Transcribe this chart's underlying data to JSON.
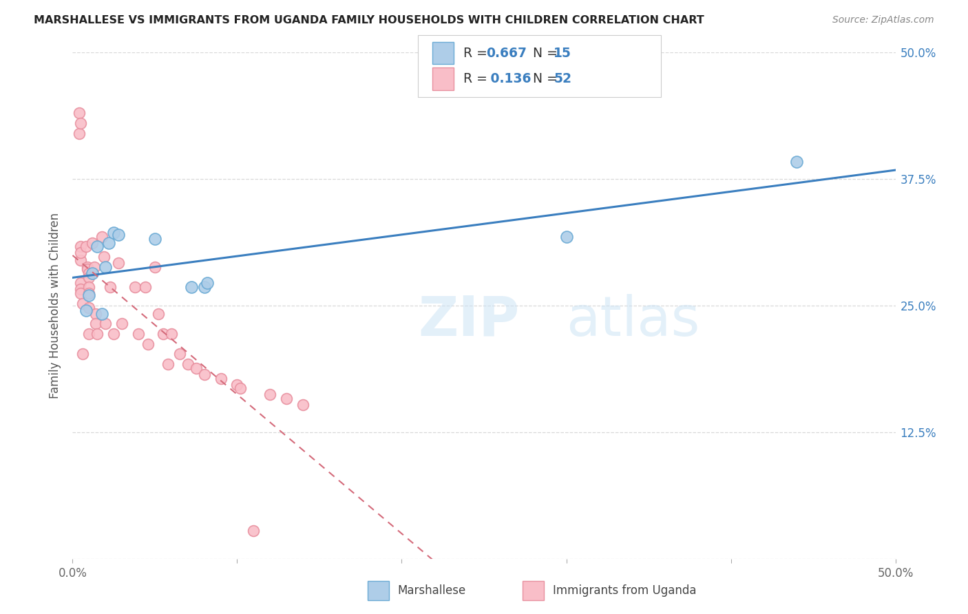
{
  "title": "MARSHALLESE VS IMMIGRANTS FROM UGANDA FAMILY HOUSEHOLDS WITH CHILDREN CORRELATION CHART",
  "source": "Source: ZipAtlas.com",
  "ylabel": "Family Households with Children",
  "x_min": 0.0,
  "x_max": 0.5,
  "y_min": 0.0,
  "y_max": 0.5,
  "y_tick_labels_right": [
    "50.0%",
    "37.5%",
    "25.0%",
    "12.5%",
    ""
  ],
  "y_tick_positions_right": [
    0.5,
    0.375,
    0.25,
    0.125,
    0.0
  ],
  "watermark_zip": "ZIP",
  "watermark_atlas": "atlas",
  "blue_dot_fill": "#aecde8",
  "blue_dot_edge": "#6aaad4",
  "blue_line_color": "#3a7ebf",
  "pink_dot_fill": "#f9bec8",
  "pink_dot_edge": "#e8909f",
  "pink_line_color": "#d46a7a",
  "legend_R1": "0.667",
  "legend_N1": "15",
  "legend_R2": "0.136",
  "legend_N2": "52",
  "grid_color": "#d8d8d8",
  "marshallese_x": [
    0.008,
    0.01,
    0.012,
    0.015,
    0.018,
    0.02,
    0.022,
    0.025,
    0.028,
    0.05,
    0.072,
    0.08,
    0.082,
    0.3,
    0.44
  ],
  "marshallese_y": [
    0.245,
    0.26,
    0.282,
    0.308,
    0.242,
    0.288,
    0.312,
    0.322,
    0.32,
    0.316,
    0.268,
    0.268,
    0.272,
    0.318,
    0.392
  ],
  "uganda_x": [
    0.004,
    0.004,
    0.005,
    0.005,
    0.005,
    0.005,
    0.005,
    0.005,
    0.005,
    0.006,
    0.006,
    0.008,
    0.009,
    0.009,
    0.01,
    0.01,
    0.01,
    0.01,
    0.01,
    0.01,
    0.012,
    0.013,
    0.014,
    0.014,
    0.015,
    0.018,
    0.019,
    0.02,
    0.023,
    0.025,
    0.028,
    0.03,
    0.038,
    0.04,
    0.044,
    0.046,
    0.05,
    0.052,
    0.055,
    0.058,
    0.06,
    0.065,
    0.07,
    0.075,
    0.08,
    0.09,
    0.1,
    0.102,
    0.11,
    0.12,
    0.13,
    0.14
  ],
  "uganda_y": [
    0.42,
    0.44,
    0.43,
    0.295,
    0.308,
    0.302,
    0.272,
    0.266,
    0.262,
    0.252,
    0.202,
    0.308,
    0.288,
    0.286,
    0.282,
    0.278,
    0.268,
    0.262,
    0.248,
    0.222,
    0.312,
    0.288,
    0.242,
    0.232,
    0.222,
    0.318,
    0.298,
    0.232,
    0.268,
    0.222,
    0.292,
    0.232,
    0.268,
    0.222,
    0.268,
    0.212,
    0.288,
    0.242,
    0.222,
    0.192,
    0.222,
    0.202,
    0.192,
    0.188,
    0.182,
    0.178,
    0.172,
    0.168,
    0.028,
    0.162,
    0.158,
    0.152
  ]
}
